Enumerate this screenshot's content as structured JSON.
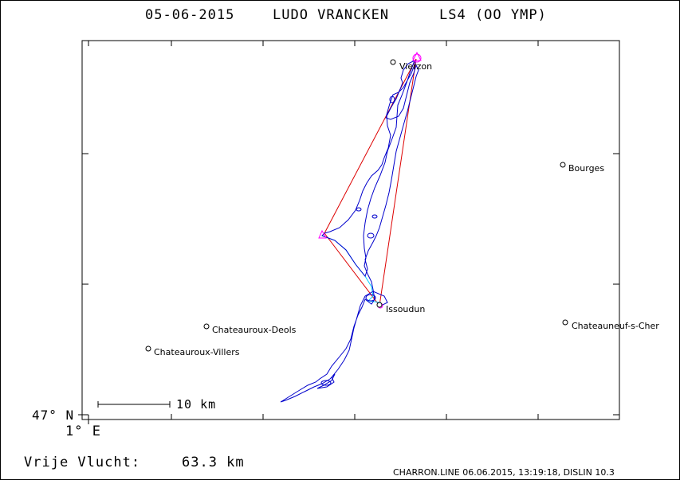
{
  "header": {
    "date": "05-06-2015",
    "pilot": "LUDO VRANCKEN",
    "glider": "LS4 (OO YMP)"
  },
  "axes": {
    "lat_label": "47° N",
    "lon_label": "1° E"
  },
  "scale_bar": {
    "label": "10 km"
  },
  "footer": {
    "distance_label": "Vrije Vlucht:",
    "distance_value": "63.3 km",
    "credit": "CHARRON.LINE 06.06.2015, 13:19:18, DISLIN 10.3"
  },
  "places": [
    {
      "name": "Vierzon"
    },
    {
      "name": "Bourges"
    },
    {
      "name": "Issoudun"
    },
    {
      "name": "Chateauroux-Deols"
    },
    {
      "name": "Chateauroux-Villers"
    },
    {
      "name": "Chateauneuf-s-Cher"
    }
  ],
  "colors": {
    "track": "#0000cc",
    "task": "#dd0000",
    "tow": "#00ccff",
    "turnpoint": "#ff00ff"
  }
}
